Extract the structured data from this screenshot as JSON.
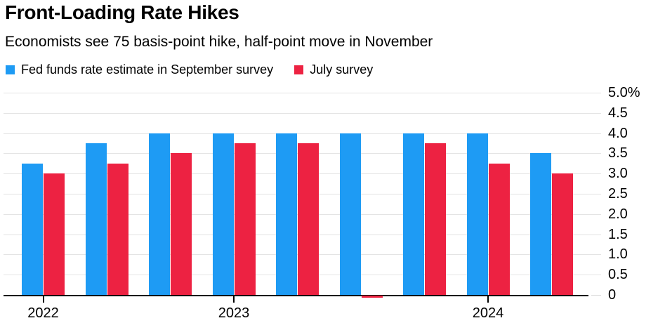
{
  "header": {
    "title": "Front-Loading Rate Hikes",
    "subtitle": "Economists see 75 basis-point hike, half-point move in November"
  },
  "legend": {
    "items": [
      {
        "label": "Fed funds rate estimate in September survey",
        "color": "#1E9BF4"
      },
      {
        "label": "July survey",
        "color": "#ED2242"
      }
    ]
  },
  "chart_data": {
    "type": "bar",
    "title": "Front-Loading Rate Hikes",
    "subtitle": "Economists see 75 basis-point hike, half-point move in November",
    "n_groups": 9,
    "series": [
      {
        "name": "Fed funds rate estimate in September survey",
        "color": "#1E9BF4",
        "values": [
          3.25,
          3.75,
          4.0,
          4.0,
          4.0,
          4.0,
          4.0,
          4.0,
          3.5
        ]
      },
      {
        "name": "July survey",
        "color": "#ED2242",
        "values": [
          3.0,
          3.25,
          3.5,
          3.75,
          3.75,
          0,
          3.75,
          3.25,
          3.0
        ]
      }
    ],
    "x_ticks": [
      {
        "label": "2022",
        "group_index": 0
      },
      {
        "label": "2023",
        "group_index": 3
      },
      {
        "label": "2024",
        "group_index": 7
      }
    ],
    "y_ticks": [
      {
        "label": "5.0%",
        "value": 5.0
      },
      {
        "label": "4.5",
        "value": 4.5
      },
      {
        "label": "4.0",
        "value": 4.0
      },
      {
        "label": "3.5",
        "value": 3.5
      },
      {
        "label": "3.0",
        "value": 3.0
      },
      {
        "label": "2.5",
        "value": 2.5
      },
      {
        "label": "2.0",
        "value": 2.0
      },
      {
        "label": "1.5",
        "value": 1.5
      },
      {
        "label": "1.0",
        "value": 1.0
      },
      {
        "label": "0.5",
        "value": 0.5
      },
      {
        "label": "0",
        "value": 0
      }
    ],
    "ylim": [
      0,
      5.0
    ],
    "y_axis_side": "right",
    "grid": "horizontal",
    "legend_position": "top",
    "colors": {
      "grid": "#E4E4E4",
      "axis": "#000000",
      "text": "#000000",
      "background": "#FFFFFF"
    }
  }
}
